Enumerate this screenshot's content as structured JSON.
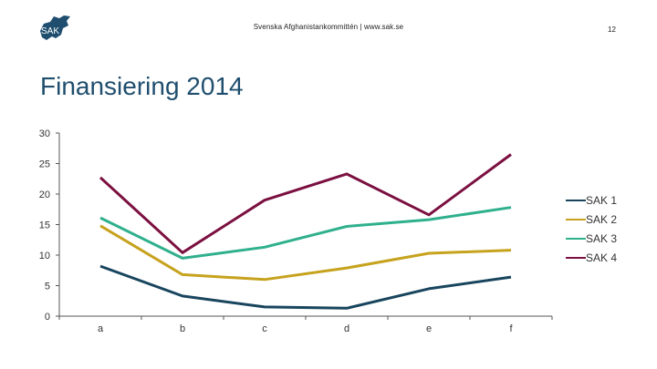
{
  "header": {
    "logo_text": "SAK",
    "org_line": "Svenska Afghanistankommittén | www.sak.se",
    "page_number": "12"
  },
  "slide": {
    "title": "Finansiering 2014"
  },
  "colors": {
    "logo": "#1f4e6e",
    "axis": "#555555"
  },
  "chart_data": {
    "type": "line",
    "title": "Finansiering 2014",
    "xlabel": "",
    "ylabel": "",
    "categories": [
      "a",
      "b",
      "c",
      "d",
      "e",
      "f"
    ],
    "ylim": [
      0,
      30
    ],
    "yticks": [
      0,
      5,
      10,
      15,
      20,
      25,
      30
    ],
    "grid": false,
    "legend_position": "right",
    "series": [
      {
        "name": "SAK 1",
        "color": "#18455e",
        "values": [
          8.2,
          3.3,
          1.5,
          1.3,
          4.5,
          6.4
        ]
      },
      {
        "name": "SAK 2",
        "color": "#c6a21d",
        "values": [
          14.8,
          6.8,
          6.0,
          7.9,
          10.3,
          10.8
        ]
      },
      {
        "name": "SAK 3",
        "color": "#2fb08d",
        "values": [
          16.1,
          9.5,
          11.3,
          14.7,
          15.8,
          17.8
        ]
      },
      {
        "name": "SAK 4",
        "color": "#7b1040",
        "values": [
          22.7,
          10.4,
          19.0,
          23.3,
          16.6,
          26.5
        ]
      }
    ]
  }
}
